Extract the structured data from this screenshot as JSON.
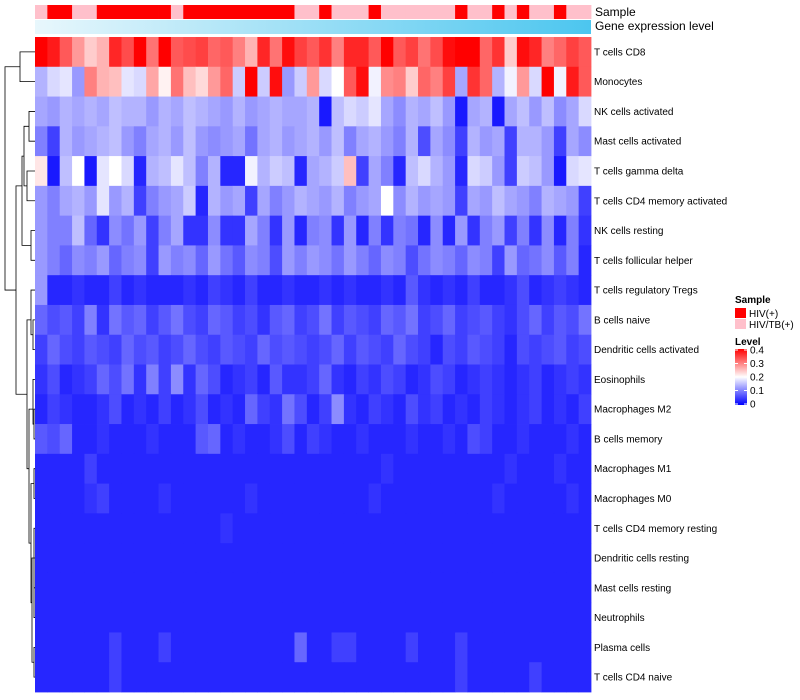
{
  "chart_data": {
    "type": "heatmap",
    "annotation_tracks": [
      {
        "name": "Sample"
      },
      {
        "name": "Gene expression level"
      }
    ],
    "sample_track": [
      "HIV/TB(+)",
      "HIV(+)",
      "HIV(+)",
      "HIV/TB(+)",
      "HIV/TB(+)",
      "HIV(+)",
      "HIV(+)",
      "HIV(+)",
      "HIV(+)",
      "HIV(+)",
      "HIV(+)",
      "HIV/TB(+)",
      "HIV(+)",
      "HIV(+)",
      "HIV(+)",
      "HIV(+)",
      "HIV(+)",
      "HIV(+)",
      "HIV(+)",
      "HIV(+)",
      "HIV(+)",
      "HIV/TB(+)",
      "HIV/TB(+)",
      "HIV(+)",
      "HIV/TB(+)",
      "HIV/TB(+)",
      "HIV/TB(+)",
      "HIV(+)",
      "HIV/TB(+)",
      "HIV/TB(+)",
      "HIV/TB(+)",
      "HIV/TB(+)",
      "HIV/TB(+)",
      "HIV/TB(+)",
      "HIV(+)",
      "HIV/TB(+)",
      "HIV/TB(+)",
      "HIV(+)",
      "HIV/TB(+)",
      "HIV(+)",
      "HIV/TB(+)",
      "HIV/TB(+)",
      "HIV(+)",
      "HIV/TB(+)",
      "HIV/TB(+)"
    ],
    "rows": [
      "T cells CD8",
      "Monocytes",
      "NK cells activated",
      "Mast cells activated",
      "T cells gamma delta",
      "T cells CD4 memory activated",
      "NK cells resting",
      "T cells follicular helper",
      "T cells regulatory  Tregs",
      "B cells naive",
      "Dendritic cells activated",
      "Eosinophils",
      "Macrophages M2",
      "B cells memory",
      "Macrophages M1",
      "Macrophages M0",
      "T cells CD4 memory resting",
      "Dendritic cells resting",
      "Mast cells resting",
      "Neutrophils",
      "Plasma cells",
      "T cells CD4 naive"
    ],
    "row_levels": [
      [
        0.4,
        0.38,
        0.33,
        0.28,
        0.24,
        0.26,
        0.37,
        0.34,
        0.4,
        0.31,
        0.4,
        0.33,
        0.34,
        0.35,
        0.32,
        0.33,
        0.3,
        0.26,
        0.37,
        0.31,
        0.39,
        0.35,
        0.33,
        0.36,
        0.3,
        0.37,
        0.37,
        0.33,
        0.4,
        0.33,
        0.35,
        0.31,
        0.34,
        0.39,
        0.4,
        0.4,
        0.32,
        0.36,
        0.24,
        0.39,
        0.37,
        0.3,
        0.32,
        0.35,
        0.33
      ],
      [
        0.14,
        0.17,
        0.18,
        0.12,
        0.3,
        0.26,
        0.25,
        0.18,
        0.17,
        0.27,
        0.21,
        0.31,
        0.25,
        0.23,
        0.28,
        0.32,
        0.16,
        0.4,
        0.16,
        0.39,
        0.12,
        0.16,
        0.28,
        0.17,
        0.2,
        0.33,
        0.39,
        0.19,
        0.29,
        0.3,
        0.24,
        0.32,
        0.3,
        0.35,
        0.13,
        0.36,
        0.32,
        0.14,
        0.19,
        0.28,
        0.17,
        0.4,
        0.19,
        0.38,
        0.33
      ],
      [
        0.13,
        0.12,
        0.14,
        0.13,
        0.14,
        0.13,
        0.15,
        0.14,
        0.14,
        0.12,
        0.14,
        0.13,
        0.15,
        0.14,
        0.13,
        0.12,
        0.14,
        0.12,
        0.13,
        0.14,
        0.13,
        0.13,
        0.14,
        0.02,
        0.15,
        0.17,
        0.16,
        0.18,
        0.13,
        0.11,
        0.14,
        0.13,
        0.15,
        0.12,
        0.02,
        0.13,
        0.14,
        0.02,
        0.13,
        0.15,
        0.12,
        0.15,
        0.11,
        0.13,
        0.17
      ],
      [
        0.1,
        0.05,
        0.14,
        0.12,
        0.13,
        0.14,
        0.15,
        0.12,
        0.1,
        0.13,
        0.14,
        0.12,
        0.15,
        0.12,
        0.11,
        0.12,
        0.13,
        0.09,
        0.13,
        0.14,
        0.12,
        0.13,
        0.14,
        0.12,
        0.15,
        0.1,
        0.13,
        0.14,
        0.12,
        0.1,
        0.14,
        0.06,
        0.13,
        0.11,
        0.05,
        0.14,
        0.12,
        0.13,
        0.05,
        0.14,
        0.14,
        0.12,
        0.05,
        0.13,
        0.11
      ],
      [
        0.22,
        0.02,
        0.15,
        0.2,
        0.02,
        0.18,
        0.2,
        0.17,
        0.03,
        0.14,
        0.15,
        0.18,
        0.15,
        0.1,
        0.14,
        0.03,
        0.03,
        0.19,
        0.14,
        0.16,
        0.15,
        0.03,
        0.13,
        0.14,
        0.16,
        0.25,
        0.05,
        0.13,
        0.1,
        0.03,
        0.15,
        0.17,
        0.14,
        0.12,
        0.03,
        0.17,
        0.16,
        0.12,
        0.05,
        0.16,
        0.15,
        0.12,
        0.02,
        0.17,
        0.18
      ],
      [
        0.12,
        0.1,
        0.13,
        0.14,
        0.12,
        0.18,
        0.12,
        0.14,
        0.05,
        0.1,
        0.12,
        0.13,
        0.16,
        0.03,
        0.14,
        0.12,
        0.13,
        0.05,
        0.13,
        0.1,
        0.12,
        0.14,
        0.13,
        0.12,
        0.14,
        0.1,
        0.12,
        0.13,
        0.2,
        0.11,
        0.14,
        0.12,
        0.13,
        0.12,
        0.05,
        0.13,
        0.12,
        0.15,
        0.13,
        0.12,
        0.1,
        0.14,
        0.13,
        0.12,
        0.05
      ],
      [
        0.12,
        0.1,
        0.1,
        0.15,
        0.08,
        0.04,
        0.11,
        0.09,
        0.12,
        0.05,
        0.1,
        0.13,
        0.04,
        0.04,
        0.11,
        0.04,
        0.04,
        0.13,
        0.1,
        0.04,
        0.12,
        0.03,
        0.1,
        0.11,
        0.04,
        0.12,
        0.03,
        0.1,
        0.04,
        0.1,
        0.09,
        0.03,
        0.11,
        0.03,
        0.12,
        0.04,
        0.1,
        0.12,
        0.05,
        0.1,
        0.04,
        0.11,
        0.03,
        0.1,
        0.04
      ],
      [
        0.12,
        0.1,
        0.08,
        0.11,
        0.1,
        0.12,
        0.08,
        0.1,
        0.11,
        0.05,
        0.12,
        0.1,
        0.11,
        0.08,
        0.12,
        0.09,
        0.07,
        0.11,
        0.1,
        0.06,
        0.12,
        0.1,
        0.12,
        0.11,
        0.09,
        0.12,
        0.1,
        0.08,
        0.11,
        0.1,
        0.06,
        0.09,
        0.11,
        0.1,
        0.08,
        0.11,
        0.1,
        0.05,
        0.12,
        0.08,
        0.09,
        0.11,
        0.07,
        0.1,
        0.03
      ],
      [
        0.12,
        0.03,
        0.03,
        0.04,
        0.03,
        0.03,
        0.05,
        0.03,
        0.04,
        0.03,
        0.03,
        0.03,
        0.04,
        0.03,
        0.05,
        0.04,
        0.03,
        0.05,
        0.03,
        0.03,
        0.04,
        0.03,
        0.03,
        0.04,
        0.03,
        0.04,
        0.03,
        0.03,
        0.04,
        0.03,
        0.07,
        0.04,
        0.03,
        0.04,
        0.03,
        0.05,
        0.03,
        0.03,
        0.04,
        0.06,
        0.03,
        0.04,
        0.05,
        0.04,
        0.03
      ],
      [
        0.08,
        0.06,
        0.07,
        0.05,
        0.1,
        0.04,
        0.09,
        0.07,
        0.08,
        0.05,
        0.07,
        0.09,
        0.06,
        0.05,
        0.08,
        0.07,
        0.05,
        0.06,
        0.04,
        0.07,
        0.08,
        0.05,
        0.06,
        0.09,
        0.05,
        0.07,
        0.06,
        0.05,
        0.08,
        0.07,
        0.09,
        0.05,
        0.06,
        0.08,
        0.05,
        0.06,
        0.07,
        0.05,
        0.04,
        0.06,
        0.08,
        0.05,
        0.07,
        0.06,
        0.09
      ],
      [
        0.05,
        0.08,
        0.06,
        0.05,
        0.07,
        0.06,
        0.05,
        0.08,
        0.06,
        0.07,
        0.05,
        0.06,
        0.08,
        0.06,
        0.05,
        0.07,
        0.06,
        0.05,
        0.08,
        0.06,
        0.07,
        0.06,
        0.05,
        0.06,
        0.08,
        0.05,
        0.07,
        0.06,
        0.05,
        0.08,
        0.06,
        0.05,
        0.03,
        0.06,
        0.05,
        0.07,
        0.06,
        0.05,
        0.03,
        0.06,
        0.05,
        0.06,
        0.07,
        0.05,
        0.06
      ],
      [
        0.04,
        0.06,
        0.03,
        0.04,
        0.05,
        0.08,
        0.06,
        0.09,
        0.04,
        0.1,
        0.05,
        0.11,
        0.04,
        0.08,
        0.06,
        0.03,
        0.04,
        0.05,
        0.03,
        0.07,
        0.04,
        0.04,
        0.05,
        0.08,
        0.04,
        0.03,
        0.05,
        0.04,
        0.06,
        0.05,
        0.03,
        0.04,
        0.06,
        0.05,
        0.03,
        0.04,
        0.05,
        0.04,
        0.03,
        0.04,
        0.05,
        0.03,
        0.04,
        0.05,
        0.04
      ],
      [
        0.03,
        0.05,
        0.04,
        0.03,
        0.03,
        0.04,
        0.06,
        0.03,
        0.04,
        0.03,
        0.05,
        0.03,
        0.04,
        0.06,
        0.03,
        0.04,
        0.03,
        0.08,
        0.05,
        0.04,
        0.09,
        0.06,
        0.03,
        0.05,
        0.11,
        0.04,
        0.03,
        0.05,
        0.04,
        0.03,
        0.06,
        0.04,
        0.05,
        0.03,
        0.04,
        0.03,
        0.05,
        0.04,
        0.03,
        0.04,
        0.05,
        0.03,
        0.04,
        0.03,
        0.05
      ],
      [
        0.07,
        0.06,
        0.08,
        0.03,
        0.03,
        0.04,
        0.03,
        0.03,
        0.03,
        0.04,
        0.03,
        0.03,
        0.03,
        0.07,
        0.08,
        0.03,
        0.04,
        0.03,
        0.03,
        0.04,
        0.06,
        0.03,
        0.05,
        0.04,
        0.03,
        0.03,
        0.04,
        0.03,
        0.03,
        0.03,
        0.04,
        0.03,
        0.03,
        0.04,
        0.03,
        0.06,
        0.05,
        0.03,
        0.03,
        0.04,
        0.03,
        0.03,
        0.03,
        0.04,
        0.03
      ],
      [
        0.03,
        0.03,
        0.03,
        0.03,
        0.05,
        0.03,
        0.03,
        0.03,
        0.03,
        0.03,
        0.03,
        0.03,
        0.03,
        0.03,
        0.03,
        0.03,
        0.03,
        0.03,
        0.03,
        0.03,
        0.03,
        0.03,
        0.03,
        0.03,
        0.03,
        0.03,
        0.03,
        0.03,
        0.04,
        0.03,
        0.03,
        0.03,
        0.03,
        0.03,
        0.03,
        0.03,
        0.03,
        0.03,
        0.04,
        0.03,
        0.03,
        0.03,
        0.04,
        0.03,
        0.03
      ],
      [
        0.03,
        0.03,
        0.03,
        0.03,
        0.04,
        0.05,
        0.03,
        0.03,
        0.03,
        0.03,
        0.04,
        0.03,
        0.03,
        0.03,
        0.03,
        0.03,
        0.03,
        0.04,
        0.03,
        0.03,
        0.03,
        0.03,
        0.03,
        0.03,
        0.03,
        0.03,
        0.03,
        0.04,
        0.03,
        0.03,
        0.03,
        0.03,
        0.03,
        0.03,
        0.03,
        0.03,
        0.03,
        0.04,
        0.03,
        0.03,
        0.03,
        0.03,
        0.03,
        0.04,
        0.03
      ],
      [
        0.03,
        0.03,
        0.03,
        0.03,
        0.03,
        0.03,
        0.03,
        0.03,
        0.03,
        0.03,
        0.03,
        0.03,
        0.03,
        0.03,
        0.03,
        0.04,
        0.03,
        0.03,
        0.03,
        0.03,
        0.03,
        0.03,
        0.03,
        0.03,
        0.03,
        0.03,
        0.03,
        0.03,
        0.03,
        0.03,
        0.03,
        0.03,
        0.03,
        0.03,
        0.03,
        0.03,
        0.03,
        0.03,
        0.03,
        0.03,
        0.03,
        0.03,
        0.03,
        0.03,
        0.03
      ],
      [
        0.03,
        0.03,
        0.03,
        0.03,
        0.03,
        0.03,
        0.03,
        0.03,
        0.03,
        0.03,
        0.03,
        0.03,
        0.03,
        0.03,
        0.03,
        0.03,
        0.03,
        0.03,
        0.03,
        0.03,
        0.03,
        0.03,
        0.03,
        0.03,
        0.03,
        0.03,
        0.03,
        0.03,
        0.03,
        0.03,
        0.03,
        0.03,
        0.03,
        0.03,
        0.03,
        0.03,
        0.03,
        0.03,
        0.03,
        0.03,
        0.03,
        0.03,
        0.03,
        0.03,
        0.03
      ],
      [
        0.03,
        0.03,
        0.03,
        0.03,
        0.03,
        0.03,
        0.03,
        0.03,
        0.03,
        0.03,
        0.03,
        0.03,
        0.03,
        0.03,
        0.03,
        0.03,
        0.03,
        0.03,
        0.03,
        0.03,
        0.03,
        0.03,
        0.03,
        0.03,
        0.03,
        0.03,
        0.03,
        0.03,
        0.03,
        0.03,
        0.03,
        0.03,
        0.03,
        0.03,
        0.03,
        0.03,
        0.03,
        0.03,
        0.03,
        0.03,
        0.03,
        0.03,
        0.03,
        0.03,
        0.03
      ],
      [
        0.03,
        0.03,
        0.03,
        0.03,
        0.03,
        0.03,
        0.03,
        0.03,
        0.03,
        0.03,
        0.03,
        0.03,
        0.03,
        0.03,
        0.03,
        0.03,
        0.03,
        0.03,
        0.03,
        0.03,
        0.03,
        0.03,
        0.03,
        0.03,
        0.03,
        0.03,
        0.03,
        0.03,
        0.03,
        0.03,
        0.03,
        0.03,
        0.03,
        0.03,
        0.03,
        0.03,
        0.03,
        0.03,
        0.03,
        0.03,
        0.03,
        0.03,
        0.03,
        0.03,
        0.03
      ],
      [
        0.03,
        0.03,
        0.03,
        0.03,
        0.03,
        0.03,
        0.05,
        0.03,
        0.03,
        0.03,
        0.05,
        0.03,
        0.03,
        0.03,
        0.03,
        0.03,
        0.03,
        0.03,
        0.03,
        0.03,
        0.03,
        0.08,
        0.03,
        0.03,
        0.05,
        0.05,
        0.03,
        0.03,
        0.03,
        0.03,
        0.05,
        0.03,
        0.03,
        0.03,
        0.05,
        0.03,
        0.03,
        0.03,
        0.03,
        0.03,
        0.03,
        0.03,
        0.03,
        0.03,
        0.03
      ],
      [
        0.03,
        0.03,
        0.03,
        0.03,
        0.03,
        0.03,
        0.05,
        0.03,
        0.03,
        0.03,
        0.03,
        0.03,
        0.03,
        0.03,
        0.03,
        0.03,
        0.03,
        0.03,
        0.03,
        0.03,
        0.03,
        0.03,
        0.03,
        0.03,
        0.03,
        0.03,
        0.03,
        0.03,
        0.03,
        0.03,
        0.03,
        0.03,
        0.03,
        0.03,
        0.05,
        0.03,
        0.03,
        0.03,
        0.03,
        0.03,
        0.05,
        0.03,
        0.03,
        0.03,
        0.03
      ]
    ],
    "legend": {
      "sample_title": "Sample",
      "sample_entries": [
        {
          "label": "HIV(+)",
          "color": "#ff0000"
        },
        {
          "label": "HIV/TB(+)",
          "color": "#ffc0cb"
        }
      ],
      "level_title": "Level",
      "level_ticks": [
        "0.4",
        "0.3",
        "0.2",
        "0.1",
        "0"
      ],
      "level_range": [
        0,
        0.4
      ],
      "level_colors": [
        "#0000ff",
        "#ffffff",
        "#ff0000"
      ]
    },
    "gradient_track_colors": [
      "#e8f7fc",
      "#4cc6ef"
    ],
    "dendrogram_color": "#000000"
  }
}
